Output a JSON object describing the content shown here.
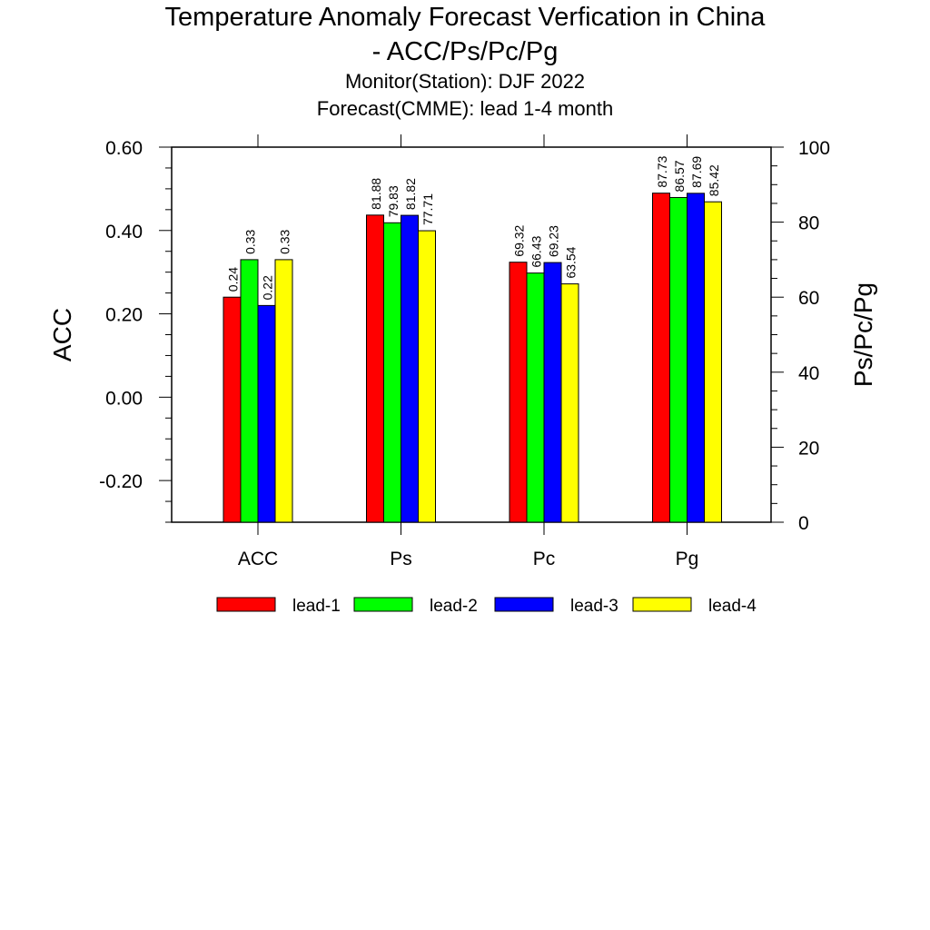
{
  "chart_data": {
    "type": "bar",
    "title_line1": "Temperature Anomaly Forecast Verfication in China",
    "title_line2": "- ACC/Ps/Pc/Pg",
    "subtitle_line1": "Monitor(Station): DJF 2022",
    "subtitle_line2": "Forecast(CMME): lead 1-4 month",
    "categories": [
      "ACC",
      "Ps",
      "Pc",
      "Pg"
    ],
    "ylabel_left": "ACC",
    "ylabel_right": "Ps/Pc/Pg",
    "ylim_left": [
      -0.3,
      0.6
    ],
    "ylim_right": [
      0,
      100
    ],
    "left_ticks": [
      "0.60",
      "0.40",
      "0.20",
      "0.00",
      "-0.20"
    ],
    "left_tick_values": [
      0.6,
      0.4,
      0.2,
      0.0,
      -0.2
    ],
    "right_ticks": [
      "100",
      "80",
      "60",
      "40",
      "20",
      "0"
    ],
    "right_tick_values": [
      100,
      80,
      60,
      40,
      20,
      0
    ],
    "legend_position": "bottom",
    "grid": false,
    "series": [
      {
        "name": "lead-1",
        "color": "#ff0000",
        "values": [
          0.24,
          81.88,
          69.32,
          87.73
        ],
        "labels": [
          "0.24",
          "81.88",
          "69.32",
          "87.73"
        ]
      },
      {
        "name": "lead-2",
        "color": "#00ff00",
        "values": [
          0.33,
          79.83,
          66.43,
          86.57
        ],
        "labels": [
          "0.33",
          "79.83",
          "66.43",
          "86.57"
        ]
      },
      {
        "name": "lead-3",
        "color": "#0000ff",
        "values": [
          0.22,
          81.82,
          69.23,
          87.69
        ],
        "labels": [
          "0.22",
          "81.82",
          "69.23",
          "87.69"
        ]
      },
      {
        "name": "lead-4",
        "color": "#ffff00",
        "values": [
          0.33,
          77.71,
          63.54,
          85.42
        ],
        "labels": [
          "0.33",
          "77.71",
          "63.54",
          "85.42"
        ]
      }
    ]
  }
}
